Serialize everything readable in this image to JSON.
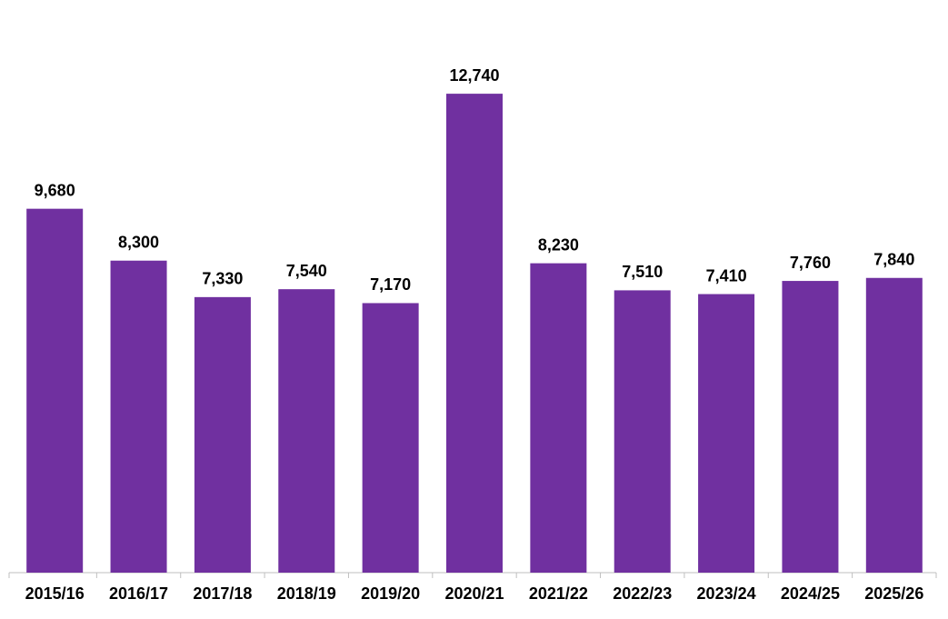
{
  "chart_data": {
    "type": "bar",
    "categories": [
      "2015/16",
      "2016/17",
      "2017/18",
      "2018/19",
      "2019/20",
      "2020/21",
      "2021/22",
      "2022/23",
      "2023/24",
      "2024/25",
      "2025/26"
    ],
    "values": [
      9680,
      8300,
      7330,
      7540,
      7170,
      12740,
      8230,
      7510,
      7410,
      7760,
      7840
    ],
    "value_labels": [
      "9,680",
      "8,300",
      "7,330",
      "7,540",
      "7,170",
      "12,740",
      "8,230",
      "7,510",
      "7,410",
      "7,760",
      "7,840"
    ],
    "color": "#7030a0",
    "ylim": [
      0,
      14000
    ]
  }
}
